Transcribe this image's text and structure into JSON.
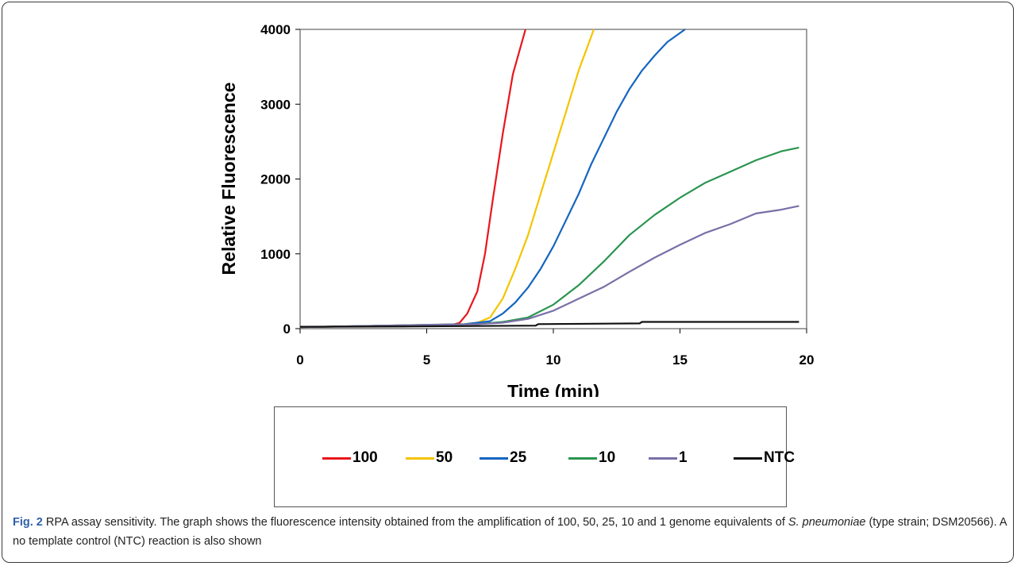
{
  "chart_data": {
    "type": "line",
    "xlabel": "Time (min)",
    "ylabel": "Relative Fluorescence",
    "xlim": [
      0,
      20
    ],
    "ylim": [
      0,
      4000
    ],
    "x_ticks": [
      0,
      5,
      10,
      15,
      20
    ],
    "y_ticks": [
      0,
      1000,
      2000,
      3000,
      4000
    ],
    "grid": false,
    "legend_position": "bottom",
    "series": [
      {
        "name": "100",
        "color": "#e8161c",
        "x": [
          0,
          6,
          6.3,
          6.6,
          7.0,
          7.3,
          7.6,
          8.0,
          8.4,
          8.9
        ],
        "y": [
          20,
          50,
          80,
          200,
          500,
          1000,
          1700,
          2600,
          3400,
          4000
        ]
      },
      {
        "name": "50",
        "color": "#f5c400",
        "x": [
          0,
          6.5,
          7.0,
          7.5,
          8.0,
          8.5,
          9.0,
          9.5,
          10.0,
          10.5,
          11.0,
          11.6
        ],
        "y": [
          20,
          60,
          80,
          150,
          400,
          800,
          1250,
          1800,
          2350,
          2900,
          3450,
          4000
        ]
      },
      {
        "name": "25",
        "color": "#1565c0",
        "x": [
          0,
          6.5,
          7.5,
          8.0,
          8.5,
          9.0,
          9.5,
          10.0,
          10.5,
          11.0,
          11.5,
          12.0,
          12.5,
          13.0,
          13.5,
          14.0,
          14.5,
          15.2
        ],
        "y": [
          20,
          60,
          100,
          200,
          350,
          550,
          800,
          1100,
          1450,
          1800,
          2200,
          2550,
          2900,
          3200,
          3450,
          3650,
          3830,
          4000
        ]
      },
      {
        "name": "10",
        "color": "#2a9450",
        "x": [
          0,
          7,
          8,
          9,
          10,
          11,
          12,
          13,
          14,
          15,
          16,
          17,
          18,
          19,
          19.7
        ],
        "y": [
          20,
          60,
          90,
          150,
          320,
          580,
          900,
          1250,
          1520,
          1750,
          1950,
          2100,
          2250,
          2370,
          2420
        ]
      },
      {
        "name": "1",
        "color": "#7a6fa8",
        "x": [
          0,
          7,
          8,
          9,
          10,
          11,
          12,
          13,
          14,
          15,
          16,
          17,
          18,
          19,
          19.7
        ],
        "y": [
          20,
          60,
          80,
          130,
          240,
          400,
          560,
          760,
          950,
          1120,
          1280,
          1400,
          1540,
          1590,
          1640
        ]
      },
      {
        "name": "NTC",
        "color": "#111111",
        "x": [
          0,
          4.5,
          9.3,
          9.4,
          13.4,
          13.5,
          19.7
        ],
        "y": [
          25,
          30,
          40,
          60,
          70,
          90,
          90
        ]
      }
    ]
  },
  "caption": {
    "fig_label": "Fig. 2",
    "text_before_italic": " RPA assay sensitivity. The graph shows the fluorescence intensity obtained from the amplification of 100, 50, 25, 10 and 1 genome equivalents of ",
    "italic": "S. pneumoniae",
    "text_after_italic": " (type strain; DSM20566). A no template control (NTC) reaction is also shown"
  }
}
